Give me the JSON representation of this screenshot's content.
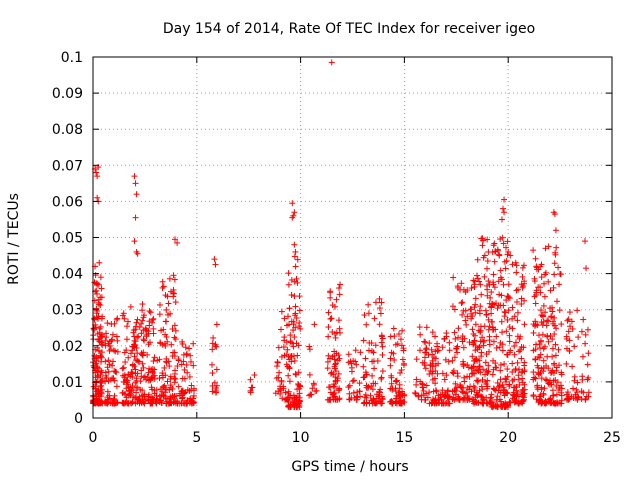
{
  "chart_data": {
    "type": "scatter",
    "title": "Day 154 of 2014, Rate Of TEC Index for receiver igeo",
    "xlabel": "GPS time / hours",
    "ylabel": "ROTI / TECUs",
    "xlim": [
      0,
      25
    ],
    "ylim": [
      0,
      0.1
    ],
    "xticks": [
      0,
      5,
      10,
      15,
      20,
      25
    ],
    "yticks": [
      0,
      0.01,
      0.02,
      0.03,
      0.04,
      0.05,
      0.06,
      0.07,
      0.08,
      0.09,
      0.1
    ],
    "grid": true,
    "marker": "+",
    "color": "#ff0000",
    "clusters": [
      {
        "x": [
          0.0,
          0.45
        ],
        "ymin": 0.004,
        "ymax": 0.04,
        "n": 160
      },
      {
        "x": [
          0.5,
          1.2
        ],
        "ymin": 0.004,
        "ymax": 0.028,
        "n": 70
      },
      {
        "x": [
          1.4,
          2.4
        ],
        "ymin": 0.004,
        "ymax": 0.032,
        "n": 130
      },
      {
        "x": [
          2.4,
          3.1
        ],
        "ymin": 0.004,
        "ymax": 0.03,
        "n": 90
      },
      {
        "x": [
          3.2,
          4.0
        ],
        "ymin": 0.004,
        "ymax": 0.04,
        "n": 110
      },
      {
        "x": [
          4.0,
          4.9
        ],
        "ymin": 0.004,
        "ymax": 0.022,
        "n": 70
      },
      {
        "x": [
          5.7,
          6.0
        ],
        "ymin": 0.007,
        "ymax": 0.026,
        "n": 18
      },
      {
        "x": [
          7.5,
          7.8
        ],
        "ymin": 0.007,
        "ymax": 0.017,
        "n": 6
      },
      {
        "x": [
          8.8,
          9.4
        ],
        "ymin": 0.005,
        "ymax": 0.03,
        "n": 40
      },
      {
        "x": [
          9.4,
          10.0
        ],
        "ymin": 0.003,
        "ymax": 0.048,
        "n": 100
      },
      {
        "x": [
          10.4,
          10.8
        ],
        "ymin": 0.006,
        "ymax": 0.03,
        "n": 12
      },
      {
        "x": [
          11.3,
          11.9
        ],
        "ymin": 0.005,
        "ymax": 0.037,
        "n": 70
      },
      {
        "x": [
          12.3,
          12.9
        ],
        "ymin": 0.005,
        "ymax": 0.02,
        "n": 30
      },
      {
        "x": [
          13.0,
          14.0
        ],
        "ymin": 0.004,
        "ymax": 0.034,
        "n": 80
      },
      {
        "x": [
          14.3,
          15.0
        ],
        "ymin": 0.004,
        "ymax": 0.025,
        "n": 70
      },
      {
        "x": [
          15.5,
          16.2
        ],
        "ymin": 0.005,
        "ymax": 0.03,
        "n": 40
      },
      {
        "x": [
          16.2,
          17.2
        ],
        "ymin": 0.004,
        "ymax": 0.024,
        "n": 90
      },
      {
        "x": [
          17.3,
          18.3
        ],
        "ymin": 0.005,
        "ymax": 0.04,
        "n": 100
      },
      {
        "x": [
          18.3,
          19.2
        ],
        "ymin": 0.004,
        "ymax": 0.05,
        "n": 150
      },
      {
        "x": [
          19.2,
          20.0
        ],
        "ymin": 0.003,
        "ymax": 0.05,
        "n": 130
      },
      {
        "x": [
          20.0,
          20.8
        ],
        "ymin": 0.004,
        "ymax": 0.045,
        "n": 110
      },
      {
        "x": [
          21.2,
          21.8
        ],
        "ymin": 0.004,
        "ymax": 0.045,
        "n": 100
      },
      {
        "x": [
          21.8,
          22.6
        ],
        "ymin": 0.004,
        "ymax": 0.048,
        "n": 100
      },
      {
        "x": [
          22.8,
          23.4
        ],
        "ymin": 0.005,
        "ymax": 0.03,
        "n": 40
      },
      {
        "x": [
          23.5,
          23.9
        ],
        "ymin": 0.005,
        "ymax": 0.03,
        "n": 20
      }
    ],
    "points": [
      [
        0.1,
        0.069
      ],
      [
        0.15,
        0.068
      ],
      [
        0.2,
        0.067
      ],
      [
        0.25,
        0.0695
      ],
      [
        0.2,
        0.061
      ],
      [
        0.25,
        0.06
      ],
      [
        0.3,
        0.043
      ],
      [
        0.1,
        0.042
      ],
      [
        2.0,
        0.067
      ],
      [
        2.05,
        0.065
      ],
      [
        2.1,
        0.062
      ],
      [
        2.05,
        0.0555
      ],
      [
        2.0,
        0.049
      ],
      [
        2.1,
        0.046
      ],
      [
        2.15,
        0.0455
      ],
      [
        3.95,
        0.0495
      ],
      [
        4.05,
        0.0485
      ],
      [
        5.85,
        0.044
      ],
      [
        5.9,
        0.0425
      ],
      [
        9.6,
        0.0595
      ],
      [
        9.7,
        0.057
      ],
      [
        9.65,
        0.056
      ],
      [
        9.6,
        0.0555
      ],
      [
        9.7,
        0.048
      ],
      [
        9.75,
        0.046
      ],
      [
        11.5,
        0.0985
      ],
      [
        11.9,
        0.037
      ],
      [
        11.85,
        0.036
      ],
      [
        13.8,
        0.033
      ],
      [
        13.9,
        0.032
      ],
      [
        19.8,
        0.0605
      ],
      [
        19.75,
        0.058
      ],
      [
        19.8,
        0.057
      ],
      [
        19.7,
        0.055
      ],
      [
        20.0,
        0.046
      ],
      [
        20.1,
        0.045
      ],
      [
        21.2,
        0.0465
      ],
      [
        21.8,
        0.047
      ],
      [
        22.2,
        0.057
      ],
      [
        22.25,
        0.0565
      ],
      [
        22.3,
        0.052
      ],
      [
        23.7,
        0.049
      ],
      [
        23.75,
        0.0415
      ]
    ]
  }
}
